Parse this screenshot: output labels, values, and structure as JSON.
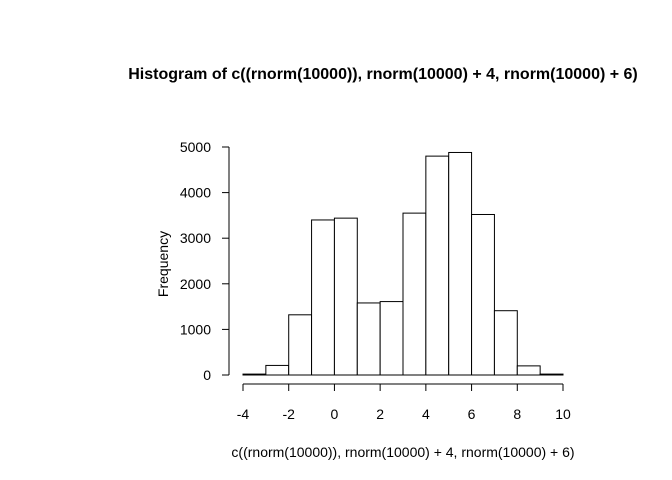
{
  "chart_data": {
    "type": "bar",
    "title": "Histogram of c((rnorm(10000)), rnorm(10000) + 4, rnorm(10000) + 6)",
    "xlabel": "c((rnorm(10000)), rnorm(10000) + 4, rnorm(10000) + 6)",
    "ylabel": "Frequency",
    "bin_edges": [
      -4,
      -3,
      -2,
      -1,
      0,
      1,
      2,
      3,
      4,
      5,
      6,
      7,
      8,
      9,
      10
    ],
    "values": [
      20,
      210,
      1320,
      3400,
      3440,
      1580,
      1610,
      3550,
      4800,
      4880,
      3520,
      1410,
      200,
      20
    ],
    "xlim": [
      -4,
      10
    ],
    "ylim": [
      0,
      5000
    ],
    "x_ticks": [
      -4,
      -2,
      0,
      2,
      4,
      6,
      8,
      10
    ],
    "x_tick_labels": [
      "-4",
      "-2",
      "0",
      "2",
      "4",
      "6",
      "8",
      "10"
    ],
    "y_ticks": [
      0,
      1000,
      2000,
      3000,
      4000,
      5000
    ],
    "y_tick_labels": [
      "0",
      "1000",
      "2000",
      "3000",
      "4000",
      "5000"
    ],
    "grid": false,
    "legend": "none",
    "colors": {
      "bar_fill": "#ffffff",
      "bar_stroke": "#000000"
    }
  }
}
